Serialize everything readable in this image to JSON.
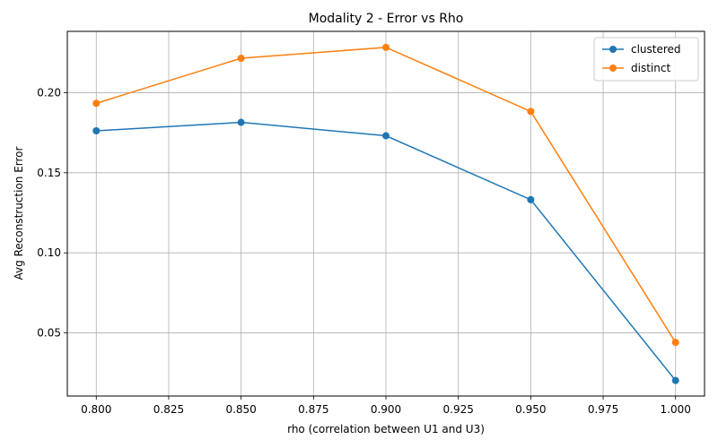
{
  "chart_data": {
    "type": "line",
    "title": "Modality 2 - Error vs Rho",
    "xlabel": "rho (correlation between U1 and U3)",
    "ylabel": "Avg Reconstruction Error",
    "x": [
      0.8,
      0.85,
      0.9,
      0.95,
      1.0
    ],
    "xlim": [
      0.79,
      1.01
    ],
    "ylim": [
      0.0106,
      0.2383
    ],
    "xticks": [
      0.8,
      0.825,
      0.85,
      0.875,
      0.9,
      0.925,
      0.95,
      0.975,
      1.0
    ],
    "xtick_labels": [
      "0.800",
      "0.825",
      "0.850",
      "0.875",
      "0.900",
      "0.925",
      "0.950",
      "0.975",
      "1.000"
    ],
    "yticks": [
      0.05,
      0.1,
      0.15,
      0.2
    ],
    "ytick_labels": [
      "0.05",
      "0.10",
      "0.15",
      "0.20"
    ],
    "grid": true,
    "legend_position": "top-right",
    "series": [
      {
        "name": "clustered",
        "color": "#1f77b4",
        "values": [
          0.1762,
          0.1815,
          0.1731,
          0.1332,
          0.0203
        ]
      },
      {
        "name": "distinct",
        "color": "#ff7f0e",
        "values": [
          0.1934,
          0.2215,
          0.2283,
          0.1883,
          0.0441
        ]
      }
    ]
  }
}
